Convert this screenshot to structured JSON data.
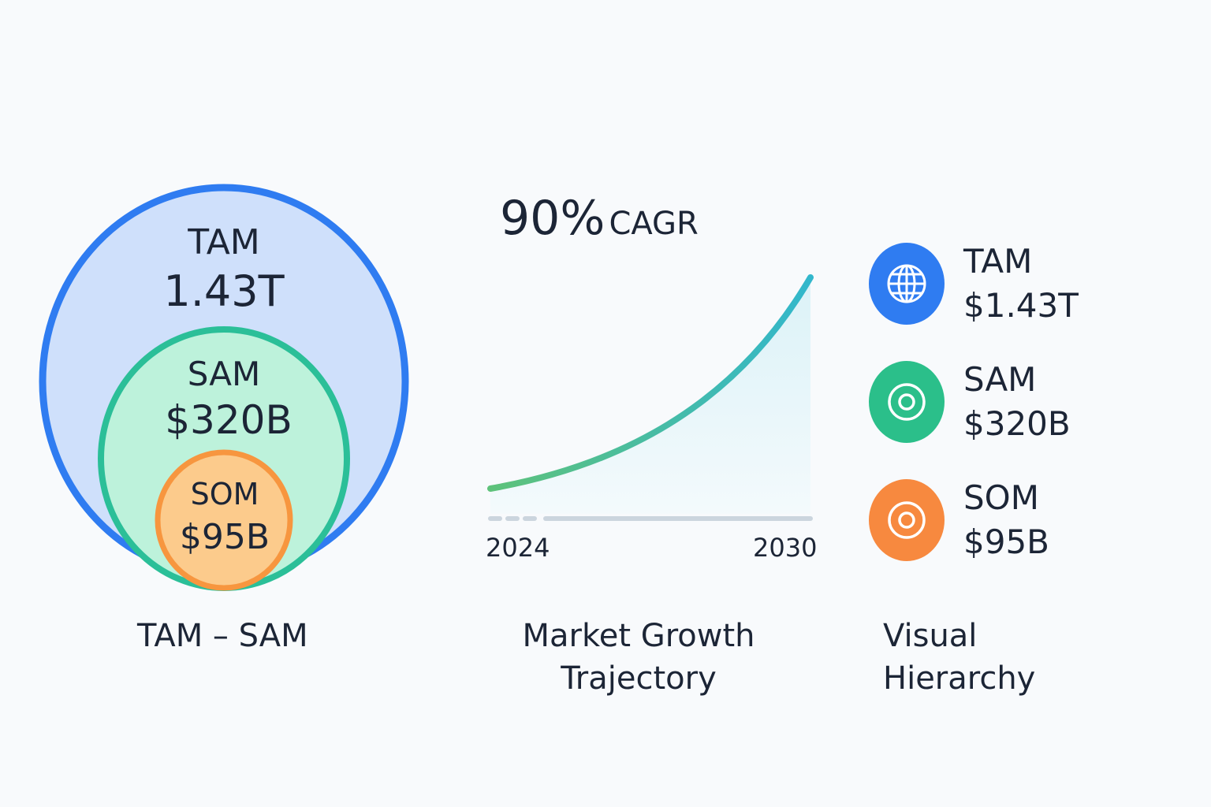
{
  "venn": {
    "tam_label": "TAM",
    "tam_value": "1.43T",
    "sam_label": "SAM",
    "sam_value": "$320B",
    "som_label": "SOM",
    "som_value": "$95B",
    "caption": "TAM – SAM",
    "colors": {
      "tam_fill": "#cfe0fb",
      "tam_stroke": "#2f7cf1",
      "sam_fill": "#bdf2db",
      "sam_stroke": "#2bbf98",
      "som_fill": "#fccb8c",
      "som_stroke": "#f7963f"
    }
  },
  "growth": {
    "headline_value": "90%",
    "headline_unit": "CAGR",
    "x_start": "2024",
    "x_end": "2030",
    "caption_line1": "Market Growth",
    "caption_line2": "Trajectory",
    "colors": {
      "line_start": "#5ec27a",
      "line_end": "#32b7cc",
      "area": "#d8f1f7",
      "baseline": "#cbd5de"
    }
  },
  "hierarchy": {
    "caption_line1": "Visual",
    "caption_line2": "Hierarchy",
    "items": [
      {
        "label": "TAM",
        "value": "$1.43T",
        "icon": "globe-icon",
        "color": "#2f7cf1"
      },
      {
        "label": "SAM",
        "value": "$320B",
        "icon": "target-icon",
        "color": "#2bbf8a"
      },
      {
        "label": "SOM",
        "value": "$95B",
        "icon": "target-icon",
        "color": "#f7893f"
      }
    ]
  }
}
